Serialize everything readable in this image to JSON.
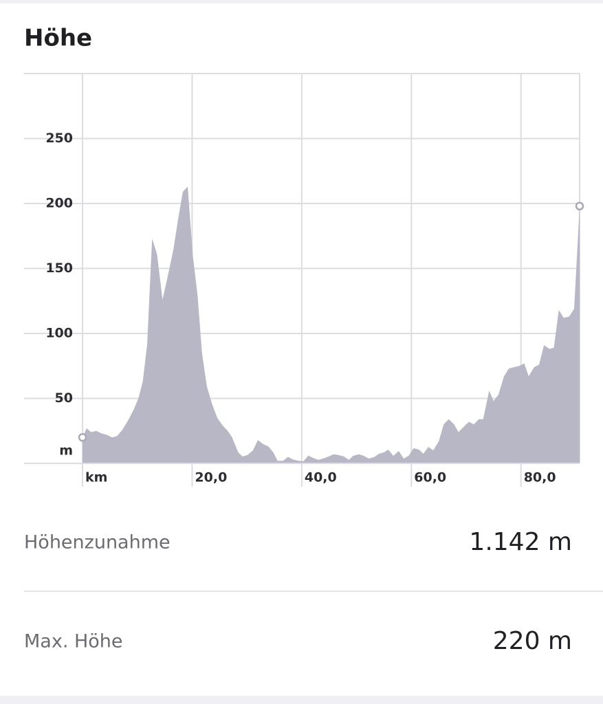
{
  "header": {
    "title": "Höhe"
  },
  "chart_data": {
    "type": "area",
    "color": "#b8b7c5",
    "grid": true,
    "x": [
      0,
      0.75,
      1.6,
      2.5,
      3.5,
      4.4,
      5.4,
      6.3,
      7.3,
      8.3,
      9.3,
      10.2,
      11.0,
      11.8,
      12.7,
      13.6,
      14.6,
      15.6,
      16.6,
      17.4,
      18.3,
      19.2,
      20.1,
      21.0,
      21.8,
      22.7,
      23.7,
      24.6,
      25.6,
      26.5,
      27.3,
      28.4,
      29.2,
      30.1,
      31.1,
      32.0,
      32.9,
      33.9,
      34.8,
      35.6,
      36.6,
      37.5,
      38.4,
      39.4,
      40.3,
      41.2,
      42.2,
      43.0,
      43.9,
      44.9,
      45.8,
      46.7,
      47.7,
      48.6,
      49.4,
      50.4,
      51.3,
      52.2,
      53.2,
      54.1,
      55.0,
      55.8,
      56.7,
      57.7,
      58.6,
      59.5,
      60.4,
      61.4,
      62.2,
      63.1,
      64.0,
      65.0,
      65.9,
      66.8,
      67.8,
      68.6,
      69.5,
      70.5,
      71.4,
      72.3,
      73.1,
      74.2,
      75.0,
      75.9,
      76.9,
      77.8,
      78.7,
      79.7,
      80.6,
      81.4,
      82.4,
      83.3,
      84.2,
      85.2,
      86.0,
      86.9,
      87.8,
      88.8,
      89.7,
      90.7
    ],
    "values": [
      20,
      27,
      24,
      25,
      23,
      22,
      20,
      21,
      26,
      33,
      41,
      50,
      63,
      92,
      173,
      161,
      126,
      145,
      165,
      187,
      209,
      213,
      161,
      129,
      85,
      59,
      45,
      35,
      29,
      25,
      20,
      8.5,
      5.3,
      6.4,
      10,
      18,
      15,
      13,
      8.5,
      2,
      2,
      5,
      3,
      2,
      1.6,
      6,
      4,
      2.7,
      3.7,
      5.3,
      7,
      6.4,
      5.3,
      2.7,
      5.8,
      7,
      5.8,
      3.7,
      4.8,
      7.4,
      8.5,
      10.6,
      5.8,
      9.5,
      3.7,
      5.8,
      11.7,
      10.6,
      7.4,
      12.7,
      10,
      17,
      30,
      34,
      30,
      24,
      28,
      32,
      30,
      34,
      34,
      56,
      48,
      53,
      67,
      73,
      74,
      75,
      77,
      67,
      74,
      76,
      91,
      88,
      89,
      118,
      112,
      113,
      119,
      198
    ],
    "xlim": [
      0,
      90.7
    ],
    "ylim": [
      0,
      300
    ],
    "xticks": [
      {
        "value": 0,
        "label": "km"
      },
      {
        "value": 20,
        "label": "20,0"
      },
      {
        "value": 40,
        "label": "40,0"
      },
      {
        "value": 60,
        "label": "60,0"
      },
      {
        "value": 80,
        "label": "80,0"
      }
    ],
    "yticks": [
      {
        "value": 0,
        "label": "m"
      },
      50,
      100,
      150,
      200,
      250
    ]
  },
  "stats": {
    "rows": [
      {
        "label": "Höhenzunahme",
        "value": "1.142 m"
      },
      {
        "label": "Max. Höhe",
        "value": "220 m"
      }
    ]
  }
}
